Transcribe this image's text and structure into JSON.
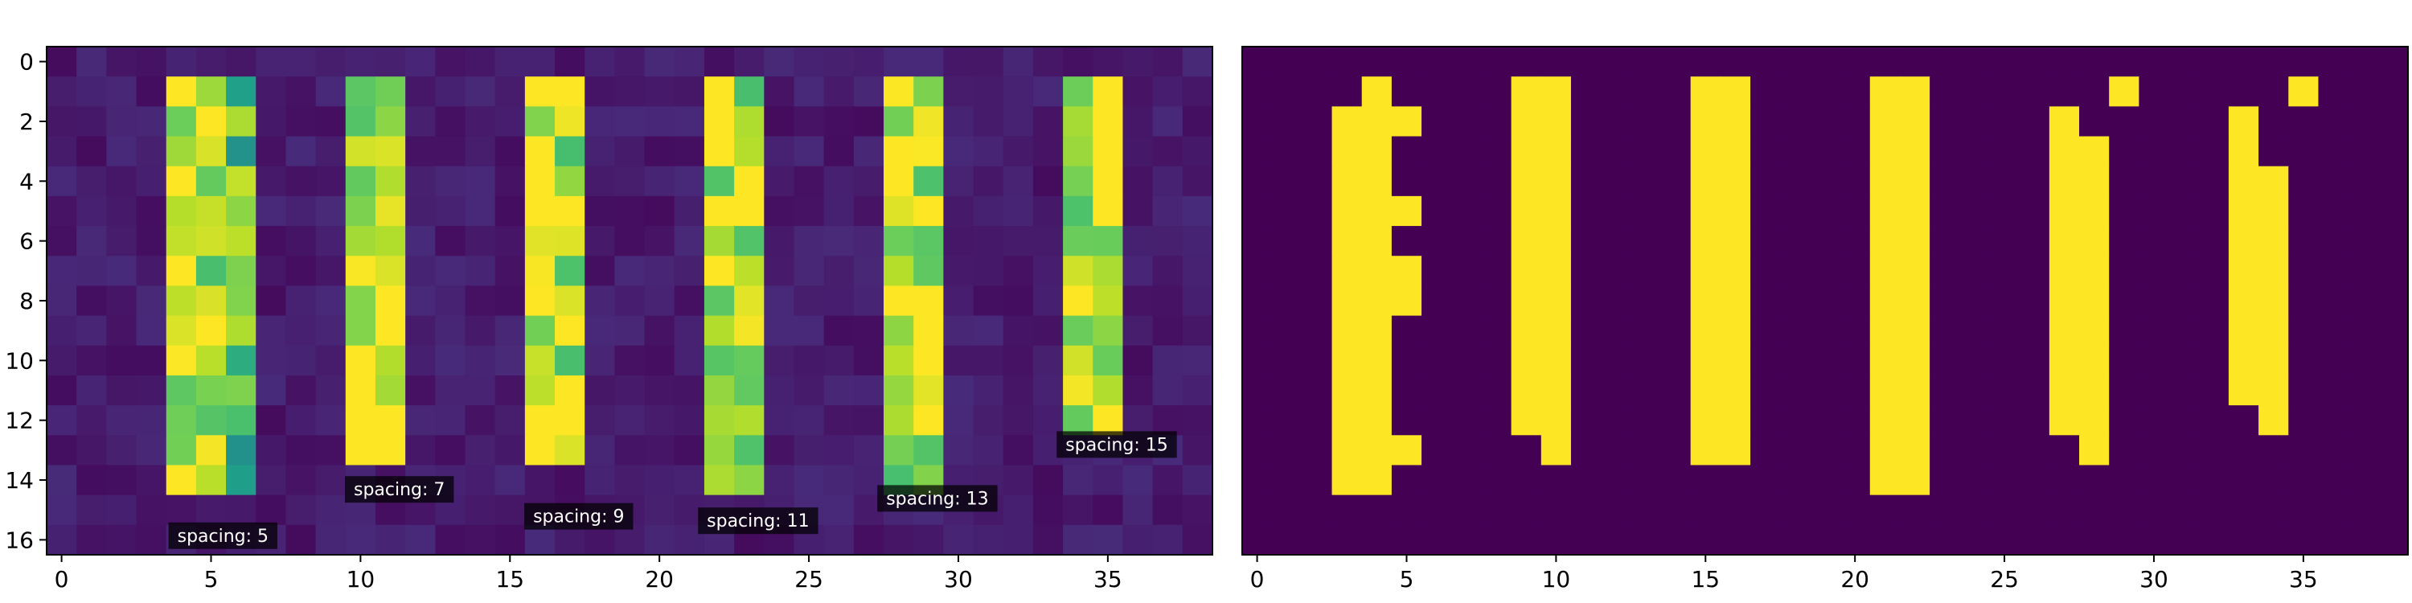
{
  "chart_data": [
    {
      "type": "heatmap",
      "title": "",
      "xlabel": "",
      "ylabel": "",
      "colormap": "viridis",
      "value_range": [
        0,
        1
      ],
      "n_rows": 17,
      "n_cols": 39,
      "x_ticks": [
        0,
        5,
        10,
        15,
        20,
        25,
        30,
        35
      ],
      "y_ticks": [
        0,
        2,
        4,
        6,
        8,
        10,
        12,
        14,
        16
      ],
      "bars": [
        {
          "cols": [
            4,
            5,
            6
          ],
          "rows": [
            1,
            14
          ]
        },
        {
          "cols": [
            10,
            11
          ],
          "rows": [
            1,
            13
          ]
        },
        {
          "cols": [
            16,
            17
          ],
          "rows": [
            1,
            13
          ]
        },
        {
          "cols": [
            22,
            23
          ],
          "rows": [
            1,
            14
          ]
        },
        {
          "cols": [
            28,
            29
          ],
          "rows": [
            1,
            14
          ]
        },
        {
          "cols": [
            34,
            35
          ],
          "rows": [
            1,
            12
          ]
        }
      ],
      "annotations": [
        {
          "text": "spacing: 5",
          "x": 5.4,
          "y": 15.85
        },
        {
          "text": "spacing: 7",
          "x": 11.3,
          "y": 14.3
        },
        {
          "text": "spacing: 9",
          "x": 17.3,
          "y": 15.2
        },
        {
          "text": "spacing: 11",
          "x": 23.3,
          "y": 15.35
        },
        {
          "text": "spacing: 13",
          "x": 29.3,
          "y": 14.6
        },
        {
          "text": "spacing: 15",
          "x": 35.3,
          "y": 12.8
        }
      ]
    },
    {
      "type": "heatmap",
      "title": "",
      "xlabel": "",
      "ylabel": "",
      "colors": {
        "on": "#fde725",
        "off": "#440154"
      },
      "n_rows": 17,
      "n_cols": 39,
      "x_ticks": [
        0,
        5,
        10,
        15,
        20,
        25,
        30,
        35
      ],
      "on_cells": [
        {
          "col": 3,
          "rows": [
            2,
            14
          ]
        },
        {
          "col": 4,
          "rows": [
            1,
            14
          ]
        },
        {
          "col": 5,
          "segments": [
            [
              2,
              2
            ],
            [
              5,
              5
            ],
            [
              7,
              8
            ],
            [
              13,
              13
            ]
          ]
        },
        {
          "col": 9,
          "rows": [
            1,
            12
          ]
        },
        {
          "col": 10,
          "rows": [
            1,
            13
          ]
        },
        {
          "col": 15,
          "rows": [
            1,
            13
          ]
        },
        {
          "col": 16,
          "rows": [
            1,
            13
          ]
        },
        {
          "col": 21,
          "rows": [
            1,
            14
          ]
        },
        {
          "col": 22,
          "rows": [
            1,
            14
          ]
        },
        {
          "col": 27,
          "rows": [
            2,
            12
          ]
        },
        {
          "col": 28,
          "segments": [
            [
              3,
              13
            ]
          ]
        },
        {
          "col": 29,
          "segments": [
            [
              1,
              1
            ]
          ]
        },
        {
          "col": 33,
          "rows": [
            2,
            11
          ]
        },
        {
          "col": 34,
          "segments": [
            [
              4,
              12
            ]
          ]
        },
        {
          "col": 35,
          "segments": [
            [
              1,
              1
            ]
          ]
        }
      ]
    }
  ]
}
